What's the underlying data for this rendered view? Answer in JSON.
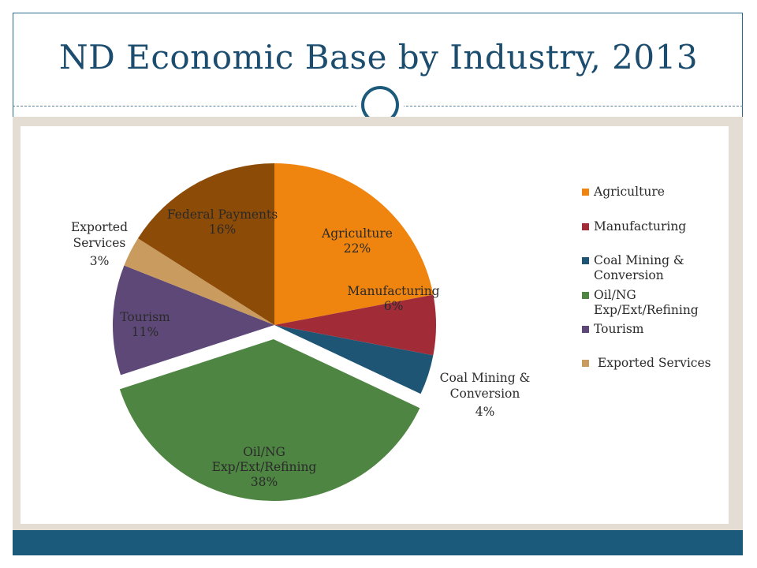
{
  "title": "ND Economic Base by Industry, 2013",
  "chart_data": {
    "type": "pie",
    "title": "ND Economic Base by Industry, 2013",
    "slices": [
      {
        "name": "Agriculture",
        "value": 22,
        "label": "22%",
        "color": "#ef850f",
        "label_lines": [
          "Agriculture",
          "22%"
        ]
      },
      {
        "name": "Manufacturing",
        "value": 6,
        "label": "6%",
        "color": "#a12c37",
        "label_lines": [
          "Manufacturing",
          "6%"
        ]
      },
      {
        "name": "Coal Mining & Conversion",
        "value": 4,
        "label": "4%",
        "color": "#1e5575",
        "label_lines": [
          "Coal Mining &",
          "Conversion",
          "4%"
        ]
      },
      {
        "name": "Oil/NG Exp/Ext/Refining",
        "value": 38,
        "label": "38%",
        "color": "#4e8542",
        "exploded": true,
        "label_lines": [
          "Oil/NG",
          "Exp/Ext/Refining",
          "38%"
        ]
      },
      {
        "name": "Tourism",
        "value": 11,
        "label": "11%",
        "color": "#5e4878",
        "label_lines": [
          "Tourism",
          "11%"
        ]
      },
      {
        "name": "Exported Services",
        "value": 3,
        "label": "3%",
        "color": "#c99b5e",
        "label_lines": [
          "Exported",
          "Services",
          "3%"
        ]
      },
      {
        "name": "Federal Payments",
        "value": 16,
        "label": "16%",
        "color": "#8d4b08",
        "label_lines": [
          "Federal Payments",
          "16%"
        ]
      }
    ],
    "legend": {
      "placement": "right",
      "entries": [
        {
          "label": "Agriculture",
          "color": "#ef850f"
        },
        {
          "label": "Manufacturing",
          "color": "#a12c37"
        },
        {
          "label": "Coal Mining & Conversion",
          "color": "#1e5575"
        },
        {
          "label": "Oil/NG Exp/Ext/Refining",
          "color": "#4e8542"
        },
        {
          "label": "Tourism",
          "color": "#5e4878"
        },
        {
          "label": " Exported Services",
          "color": "#c99b5e"
        }
      ]
    }
  }
}
